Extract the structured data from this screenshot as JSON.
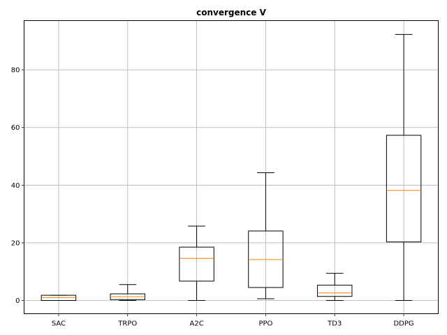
{
  "chart_data": {
    "type": "box",
    "title": "convergence V",
    "xlabel": "",
    "ylabel": "",
    "categories": [
      "SAC",
      "TRPO",
      "A2C",
      "PPO",
      "TD3",
      "DDPG"
    ],
    "yticks": [
      0,
      20,
      40,
      60,
      80
    ],
    "ylim": [
      -4.6,
      97.1
    ],
    "grid": true,
    "box_color": "#000000",
    "median_color": "#ff7f0e",
    "grid_color": "#b0b0b0",
    "boxes": [
      {
        "name": "SAC",
        "whisker_low": 0.0,
        "q1": 0.0,
        "median": 1.0,
        "q3": 1.8,
        "whisker_high": 1.8
      },
      {
        "name": "TRPO",
        "whisker_low": 0.0,
        "q1": 0.3,
        "median": 1.3,
        "q3": 2.3,
        "whisker_high": 5.5
      },
      {
        "name": "A2C",
        "whisker_low": 0.0,
        "q1": 6.7,
        "median": 14.6,
        "q3": 18.5,
        "whisker_high": 25.8
      },
      {
        "name": "PPO",
        "whisker_low": 0.6,
        "q1": 4.5,
        "median": 14.2,
        "q3": 24.1,
        "whisker_high": 44.3
      },
      {
        "name": "TD3",
        "whisker_low": 0.0,
        "q1": 1.4,
        "median": 2.6,
        "q3": 5.3,
        "whisker_high": 9.4
      },
      {
        "name": "DDPG",
        "whisker_low": 0.0,
        "q1": 20.3,
        "median": 38.2,
        "q3": 57.3,
        "whisker_high": 92.3
      }
    ]
  }
}
